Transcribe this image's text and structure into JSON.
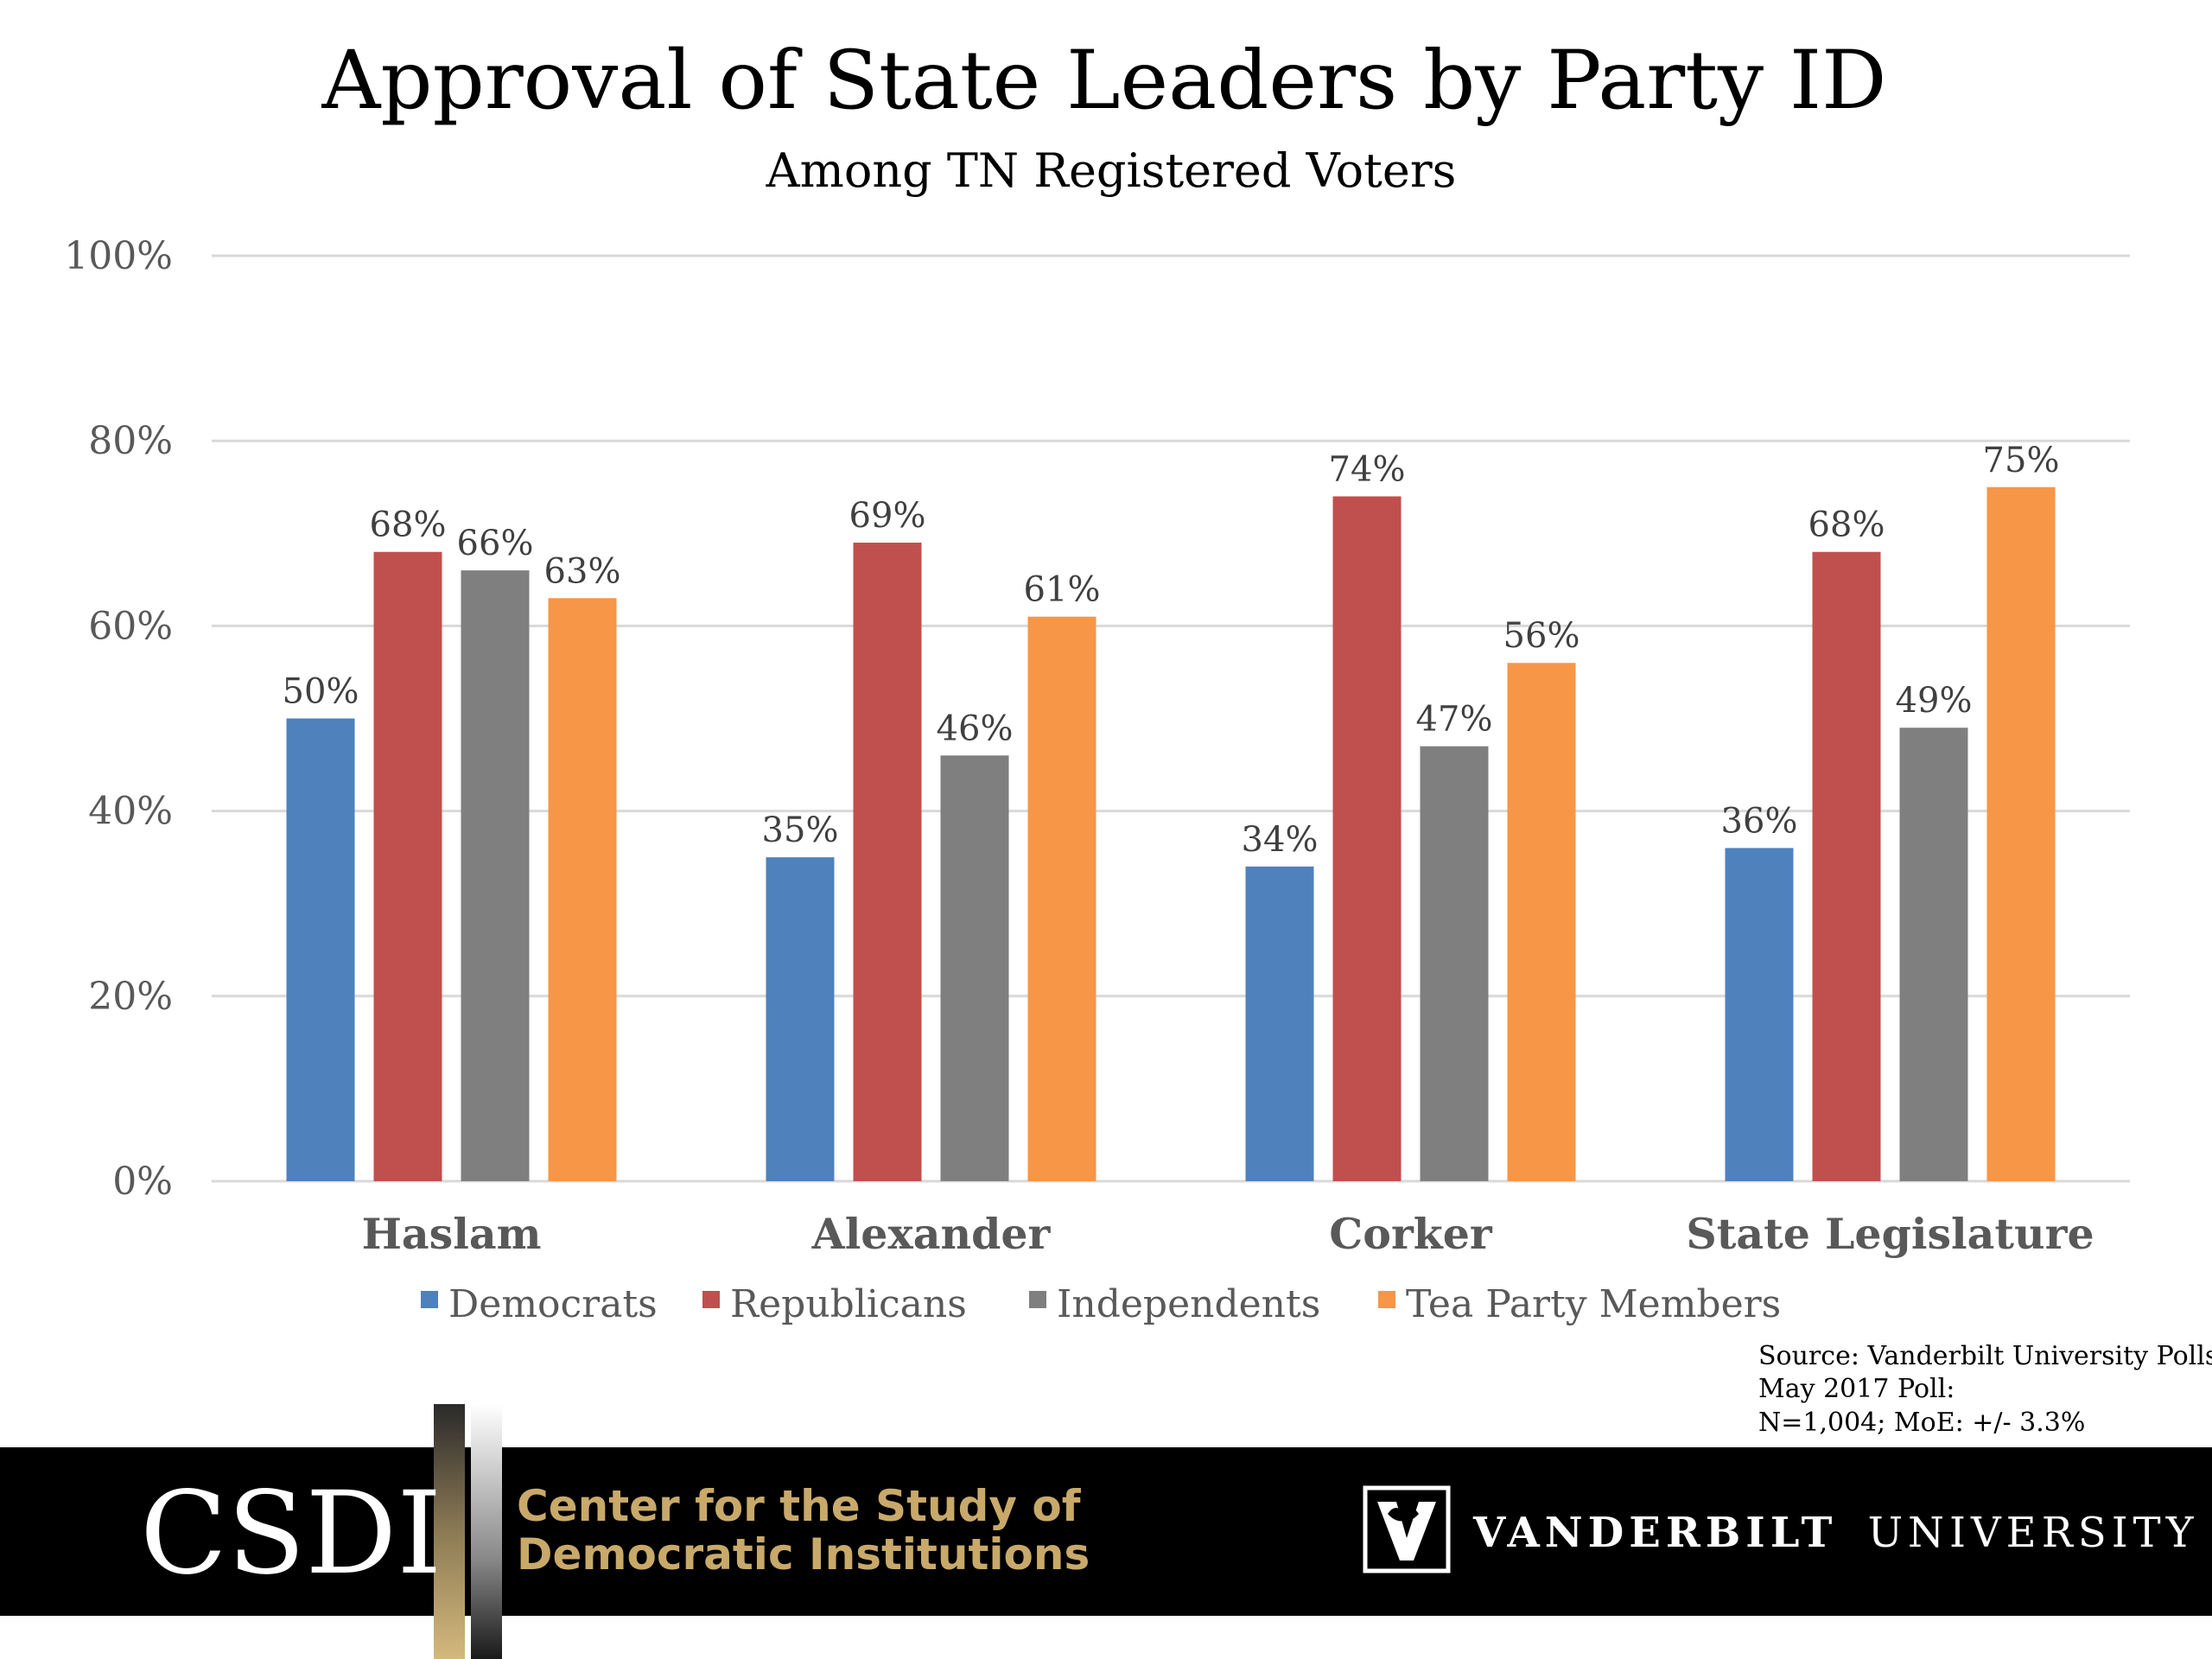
{
  "chart_data": {
    "type": "bar",
    "title": "Approval of State Leaders by Party ID",
    "subtitle": "Among TN Registered Voters",
    "categories": [
      "Haslam",
      "Alexander",
      "Corker",
      "State Legislature"
    ],
    "series": [
      {
        "name": "Democrats",
        "color": "#4f81bd",
        "values": [
          50,
          35,
          34,
          36
        ]
      },
      {
        "name": "Republicans",
        "color": "#c0504d",
        "values": [
          68,
          69,
          74,
          68
        ]
      },
      {
        "name": "Independents",
        "color": "#7f7f7f",
        "values": [
          66,
          46,
          47,
          49
        ]
      },
      {
        "name": "Tea Party Members",
        "color": "#f79646",
        "values": [
          63,
          61,
          56,
          75
        ]
      }
    ],
    "ylim": [
      0,
      100
    ],
    "yticks": [
      0,
      20,
      40,
      60,
      80,
      100
    ],
    "value_suffix": "%",
    "grid": true,
    "legend_position": "bottom"
  },
  "source": {
    "line1": "Source: Vanderbilt University Polls",
    "line2": "May 2017 Poll:",
    "line3": "N=1,004; MoE: +/- 3.3%"
  },
  "footer": {
    "csdi": "CSDI",
    "center_line1": "Center for the Study of",
    "center_line2": "Democratic Institutions",
    "vanderbilt_bold": "VANDERBILT",
    "vanderbilt_light": "UNIVERSITY"
  },
  "colors": {
    "footer_bg": "#000000",
    "gold": "#c8a96a",
    "grid": "#d9d9d9"
  }
}
